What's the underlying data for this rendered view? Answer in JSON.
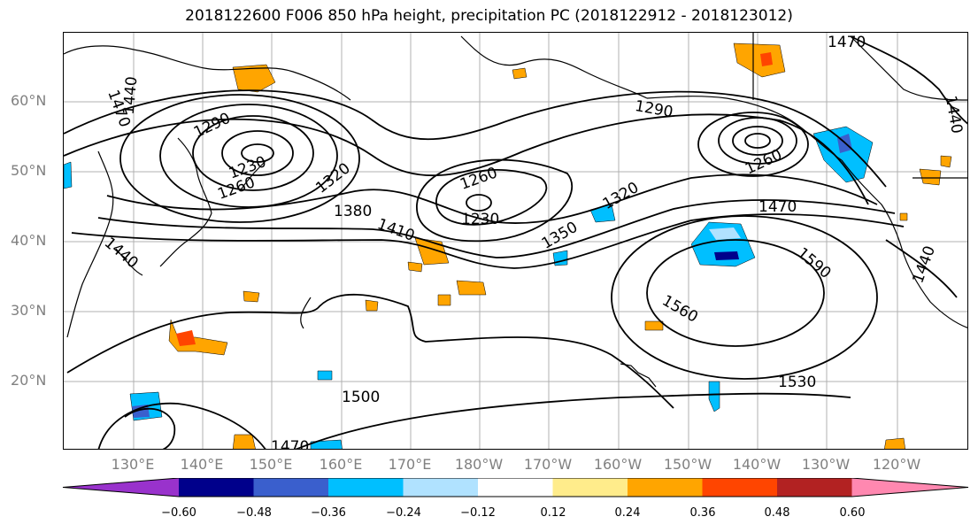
{
  "title": "2018122600 F006 850 hPa height, precipitation PC (2018122912 - 2018123012)",
  "lat_labels": [
    "60°N",
    "50°N",
    "40°N",
    "30°N",
    "20°N"
  ],
  "lon_labels": [
    "130°E",
    "140°E",
    "150°E",
    "160°E",
    "170°E",
    "180°W",
    "170°W",
    "160°W",
    "150°W",
    "140°W",
    "130°W",
    "120°W"
  ],
  "contour_labels": [
    "1470",
    "1440",
    "1290",
    "1230",
    "1260",
    "1320",
    "1380",
    "1410",
    "1440",
    "1260",
    "1230",
    "1350",
    "1320",
    "1290",
    "1260",
    "1470",
    "1590",
    "1560",
    "1530",
    "1500",
    "1470",
    "1470",
    "1440",
    "1440"
  ],
  "colorbar": {
    "colors": [
      "#9932cc",
      "#00008b",
      "#3a5fcd",
      "#00bfff",
      "#b0e2ff",
      "#ffffff",
      "#ffec8b",
      "#ffa500",
      "#ff4500",
      "#b22222",
      "#ff88b0"
    ],
    "tick_labels": [
      "−0.60",
      "−0.48",
      "−0.36",
      "−0.24",
      "−0.12",
      "0.12",
      "0.24",
      "0.36",
      "0.48",
      "0.60"
    ]
  }
}
